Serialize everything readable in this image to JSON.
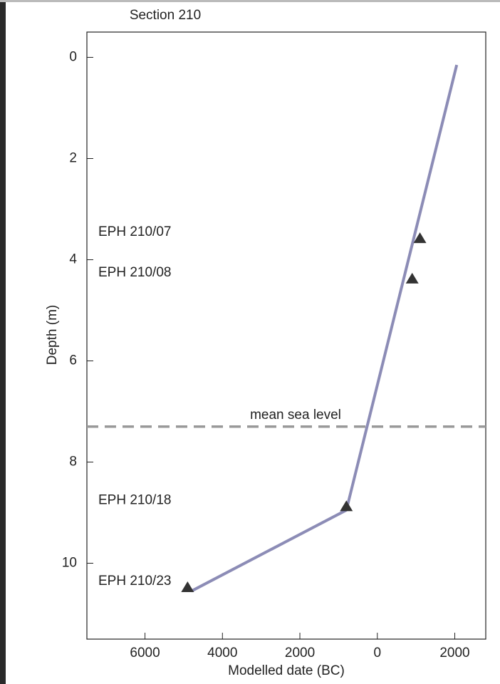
{
  "chart_data": {
    "type": "line",
    "title": "Section 210",
    "x_label": "Modelled date (BC)",
    "y_label": "Depth (m)",
    "x": [
      2050,
      -800,
      -4800
    ],
    "series": [
      {
        "color": "#8c8cb6",
        "values": [
          0.15,
          8.95,
          10.55
        ]
      }
    ],
    "xlim": [
      -7500,
      2800
    ],
    "xticks": [
      {
        "value": -6000,
        "label": "6000"
      },
      {
        "value": -4000,
        "label": "4000"
      },
      {
        "value": -2000,
        "label": "2000"
      },
      0,
      2000
    ],
    "ylim": [
      11.5,
      -0.5
    ],
    "yticks": [
      0,
      2,
      4,
      6,
      8,
      10
    ],
    "samples": [
      {
        "label": "EPH 210/07",
        "x": 1100,
        "y": 3.6
      },
      {
        "label": "EPH 210/08",
        "x": 900,
        "y": 4.4
      },
      {
        "label": "EPH 210/18",
        "x": -800,
        "y": 8.9
      },
      {
        "label": "EPH 210/23",
        "x": -4900,
        "y": 10.5
      }
    ],
    "reference_line": {
      "label": "mean sea level",
      "y": 7.3,
      "color": "#999999"
    }
  }
}
